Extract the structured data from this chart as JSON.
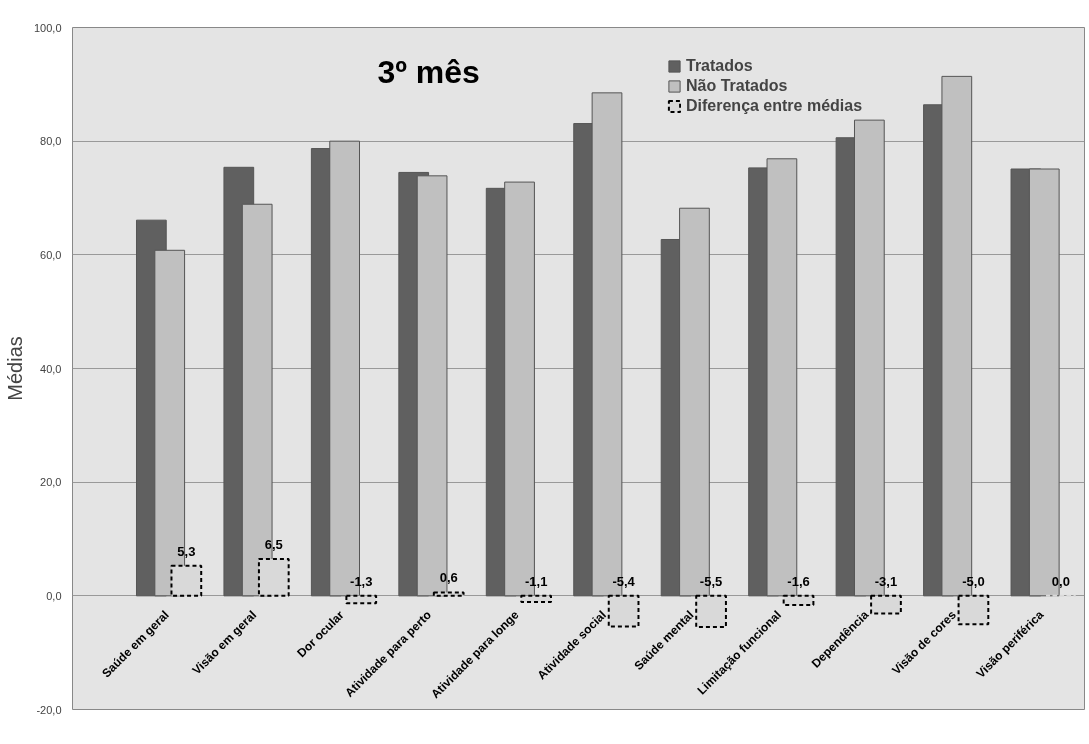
{
  "chart_data": {
    "type": "bar",
    "title": "3º mês",
    "ylabel": "Médias",
    "categories": [
      "Saúde em geral",
      "Visão em geral",
      "Dor ocular",
      "Atividade para perto",
      "Atividade para longe",
      "Atividade social",
      "Saúde mental",
      "Limitação funcional",
      "Dependência",
      "Visão de cores",
      "Visão periférica"
    ],
    "series": [
      {
        "name": "Tratados",
        "color": "#606060",
        "values": [
          66.1,
          75.4,
          78.7,
          74.5,
          71.7,
          83.1,
          62.7,
          75.3,
          80.6,
          86.4,
          75.1
        ]
      },
      {
        "name": "Não Tratados",
        "color": "#c0c0c0",
        "values": [
          60.8,
          68.9,
          80.0,
          73.9,
          72.8,
          88.5,
          68.2,
          76.9,
          83.7,
          91.4,
          75.1
        ]
      },
      {
        "name": "Diferença entre médias",
        "color": "#d9d9d9",
        "line_style": "dashed",
        "values": [
          5.3,
          6.5,
          -1.3,
          0.6,
          -1.1,
          -5.4,
          -5.5,
          -1.6,
          -3.1,
          -5.0,
          0.0
        ],
        "value_labels": [
          "5,3",
          "6,5",
          "-1,3",
          "0,6",
          "-1,1",
          "-5,4",
          "-5,5",
          "-1,6",
          "-3,1",
          "-5,0",
          "0,0"
        ]
      }
    ],
    "ylim": [
      -20,
      100
    ],
    "yticks": [
      {
        "value": -20,
        "label": "-20,0"
      },
      {
        "value": 0,
        "label": "0,0"
      },
      {
        "value": 20,
        "label": "20,0"
      },
      {
        "value": 40,
        "label": "40,0"
      },
      {
        "value": 60,
        "label": "60,0"
      },
      {
        "value": 80,
        "label": "80,0"
      },
      {
        "value": 100,
        "label": "100,0"
      }
    ],
    "grid": "y",
    "legend": "top right"
  }
}
